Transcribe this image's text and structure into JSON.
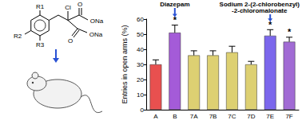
{
  "chart_data": {
    "type": "bar",
    "y_label": "Entries in open arms (%)",
    "categories": [
      "A",
      "B",
      "7A",
      "7B",
      "7C",
      "7D",
      "7E",
      "7F"
    ],
    "values": [
      30,
      51,
      36,
      36,
      38,
      30,
      49,
      45
    ],
    "errors": [
      3,
      5,
      3,
      3,
      4,
      2,
      4,
      3
    ],
    "colors": [
      "#e8504f",
      "#a45bd8",
      "#ddd072",
      "#ddd072",
      "#ddd072",
      "#ddd072",
      "#7b67ec",
      "#a16bd4"
    ],
    "ylim": [
      0,
      60
    ],
    "yticks": [
      0,
      10,
      20,
      30,
      40,
      50,
      60
    ],
    "grid": false,
    "significance": [
      {
        "category": "B",
        "text": "*"
      },
      {
        "category": "7E",
        "text": "*"
      },
      {
        "category": "7F",
        "text": "*"
      }
    ],
    "annotations": [
      {
        "category": "B",
        "lines": [
          "Diazepam"
        ]
      },
      {
        "category": "7E",
        "lines": [
          "Sodium 2-(2-chlorobenzyl)",
          "-2-chloromalonate"
        ]
      }
    ]
  },
  "structure": {
    "labels": [
      "R1",
      "R2",
      "R3",
      "Cl",
      "O",
      "ONa",
      "O",
      "ONa"
    ]
  }
}
